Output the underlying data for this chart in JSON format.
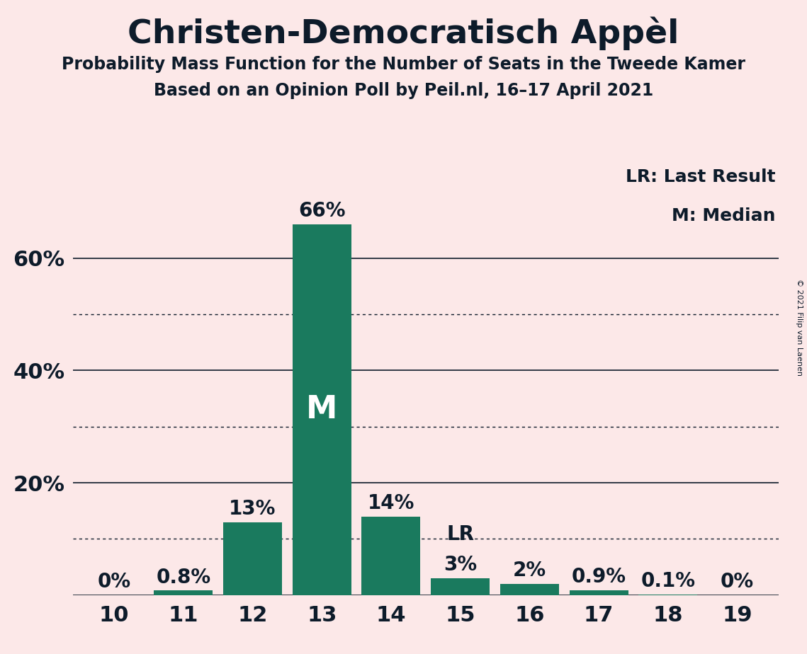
{
  "title": "Christen-Democratisch Appèl",
  "subtitle1": "Probability Mass Function for the Number of Seats in the Tweede Kamer",
  "subtitle2": "Based on an Opinion Poll by Peil.nl, 16–17 April 2021",
  "copyright": "© 2021 Filip van Laenen",
  "categories": [
    10,
    11,
    12,
    13,
    14,
    15,
    16,
    17,
    18,
    19
  ],
  "values": [
    0.0,
    0.8,
    13.0,
    66.0,
    14.0,
    3.0,
    2.0,
    0.9,
    0.1,
    0.0
  ],
  "labels": [
    "0%",
    "0.8%",
    "13%",
    "66%",
    "14%",
    "3%",
    "2%",
    "0.9%",
    "0.1%",
    "0%"
  ],
  "bar_color": "#1a7a5e",
  "background_color": "#fce8e8",
  "text_color": "#0d1b2a",
  "median_bar": 13,
  "lr_bar": 15,
  "legend_lr": "LR: Last Result",
  "legend_m": "M: Median",
  "solid_yticks": [
    0,
    20,
    40,
    60
  ],
  "dotted_yticks": [
    10,
    30,
    50
  ],
  "ylim": [
    0,
    78
  ]
}
